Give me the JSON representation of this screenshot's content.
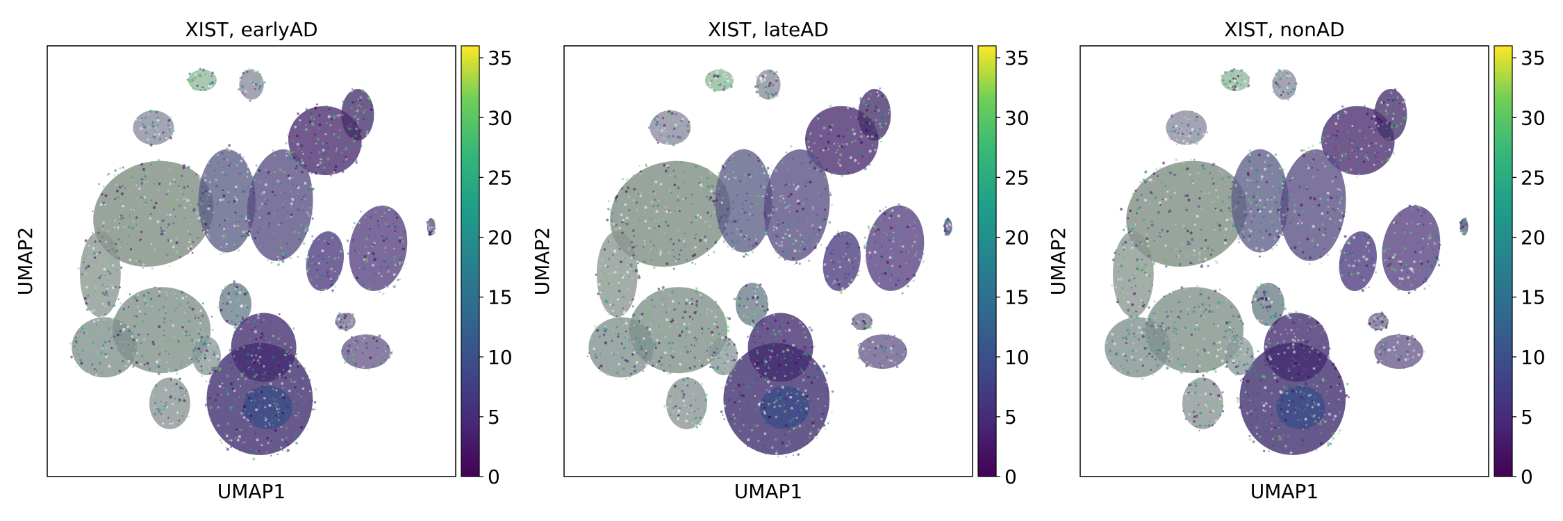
{
  "chart_data": [
    {
      "type": "scatter",
      "title": "XIST, earlyAD",
      "xlabel": "UMAP1",
      "ylabel": "UMAP2",
      "colorbar": {
        "colormap": "viridis",
        "range": [
          0,
          36
        ],
        "ticks": [
          0,
          5,
          10,
          15,
          20,
          25,
          30,
          35
        ]
      },
      "grid": false
    },
    {
      "type": "scatter",
      "title": "XIST, lateAD",
      "xlabel": "UMAP1",
      "ylabel": "UMAP2",
      "colorbar": {
        "colormap": "viridis",
        "range": [
          0,
          36
        ],
        "ticks": [
          0,
          5,
          10,
          15,
          20,
          25,
          30,
          35
        ]
      },
      "grid": false
    },
    {
      "type": "scatter",
      "title": "XIST, nonAD",
      "xlabel": "UMAP1",
      "ylabel": "UMAP2",
      "colorbar": {
        "colormap": "viridis",
        "range": [
          0,
          36
        ],
        "ticks": [
          0,
          5,
          10,
          15,
          20,
          25,
          30,
          35
        ]
      },
      "grid": false
    }
  ]
}
